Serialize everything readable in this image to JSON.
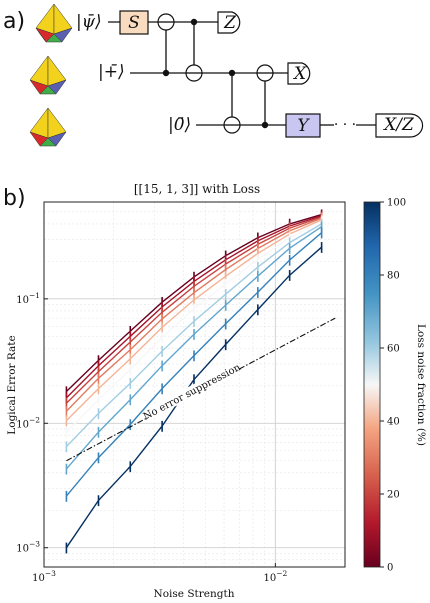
{
  "panel_a": {
    "label": "a)",
    "wires": [
      {
        "state": "|ψ̄⟩"
      },
      {
        "state": "|+̄⟩"
      },
      {
        "state": "|0̄⟩"
      }
    ],
    "gates": {
      "s": {
        "label": "S",
        "color": "#f9dcc0"
      },
      "y": {
        "label": "Y",
        "color": "#c9c7f2"
      },
      "meas_top": "Z",
      "meas_mid": "X",
      "meas_bottom": "X/Z",
      "dots": "· · ·"
    },
    "tetra_colors": [
      "#f2d21d",
      "#d72b2b",
      "#3fae49",
      "#5a5fb0"
    ]
  },
  "panel_b": {
    "label": "b)",
    "colors": {
      "low": "#67001f",
      "mid": "#f7f7f7",
      "high": "#053061"
    },
    "colorbar": {
      "label": "Loss noise fraction (%)",
      "ticks": [
        "0",
        "20",
        "40",
        "60",
        "80",
        "100"
      ]
    }
  },
  "chart_data": {
    "type": "line",
    "title": "[[15, 1, 3]] with Loss",
    "xlabel": "Noise Strength",
    "ylabel": "Logical Error Rate",
    "xscale": "log",
    "yscale": "log",
    "xlim": [
      0.001,
      0.02
    ],
    "ylim": [
      0.0007,
      0.6
    ],
    "x_ticks": [
      "10^-3",
      "10^-2"
    ],
    "y_ticks": [
      "10^-3",
      "10^-2",
      "10^-1"
    ],
    "grid": true,
    "x": [
      0.00125,
      0.00172,
      0.00236,
      0.00324,
      0.00445,
      0.0061,
      0.0084,
      0.01153,
      0.01585
    ],
    "series": [
      {
        "loss_fraction": 0,
        "values": [
          0.018,
          0.032,
          0.055,
          0.094,
          0.15,
          0.222,
          0.31,
          0.4,
          0.475
        ]
      },
      {
        "loss_fraction": 10,
        "values": [
          0.016,
          0.029,
          0.05,
          0.086,
          0.138,
          0.206,
          0.292,
          0.385,
          0.465
        ]
      },
      {
        "loss_fraction": 20,
        "values": [
          0.0145,
          0.026,
          0.045,
          0.078,
          0.126,
          0.19,
          0.274,
          0.37,
          0.455
        ]
      },
      {
        "loss_fraction": 30,
        "values": [
          0.0125,
          0.023,
          0.039,
          0.069,
          0.112,
          0.172,
          0.254,
          0.352,
          0.445
        ]
      },
      {
        "loss_fraction": 40,
        "values": [
          0.0105,
          0.019,
          0.033,
          0.059,
          0.098,
          0.152,
          0.232,
          0.332,
          0.432
        ]
      },
      {
        "loss_fraction": 50,
        "values": [
          0.0085,
          0.0155,
          0.027,
          0.049,
          0.083,
          0.132,
          0.208,
          0.31,
          0.418
        ]
      },
      {
        "loss_fraction": 60,
        "values": [
          0.0065,
          0.012,
          0.021,
          0.038,
          0.066,
          0.109,
          0.18,
          0.283,
          0.4
        ]
      },
      {
        "loss_fraction": 70,
        "values": [
          0.0043,
          0.0085,
          0.0155,
          0.029,
          0.052,
          0.089,
          0.152,
          0.255,
          0.38
        ]
      },
      {
        "loss_fraction": 80,
        "values": [
          0.0026,
          0.0053,
          0.0098,
          0.019,
          0.035,
          0.063,
          0.113,
          0.205,
          0.34
        ]
      },
      {
        "loss_fraction": 100,
        "values": [
          0.001,
          0.0024,
          0.0045,
          0.0095,
          0.0225,
          0.043,
          0.082,
          0.155,
          0.26
        ]
      }
    ],
    "reference_line": {
      "label": "No error suppression",
      "x": [
        0.00125,
        0.01815
      ],
      "y": [
        0.005,
        0.07
      ]
    }
  }
}
